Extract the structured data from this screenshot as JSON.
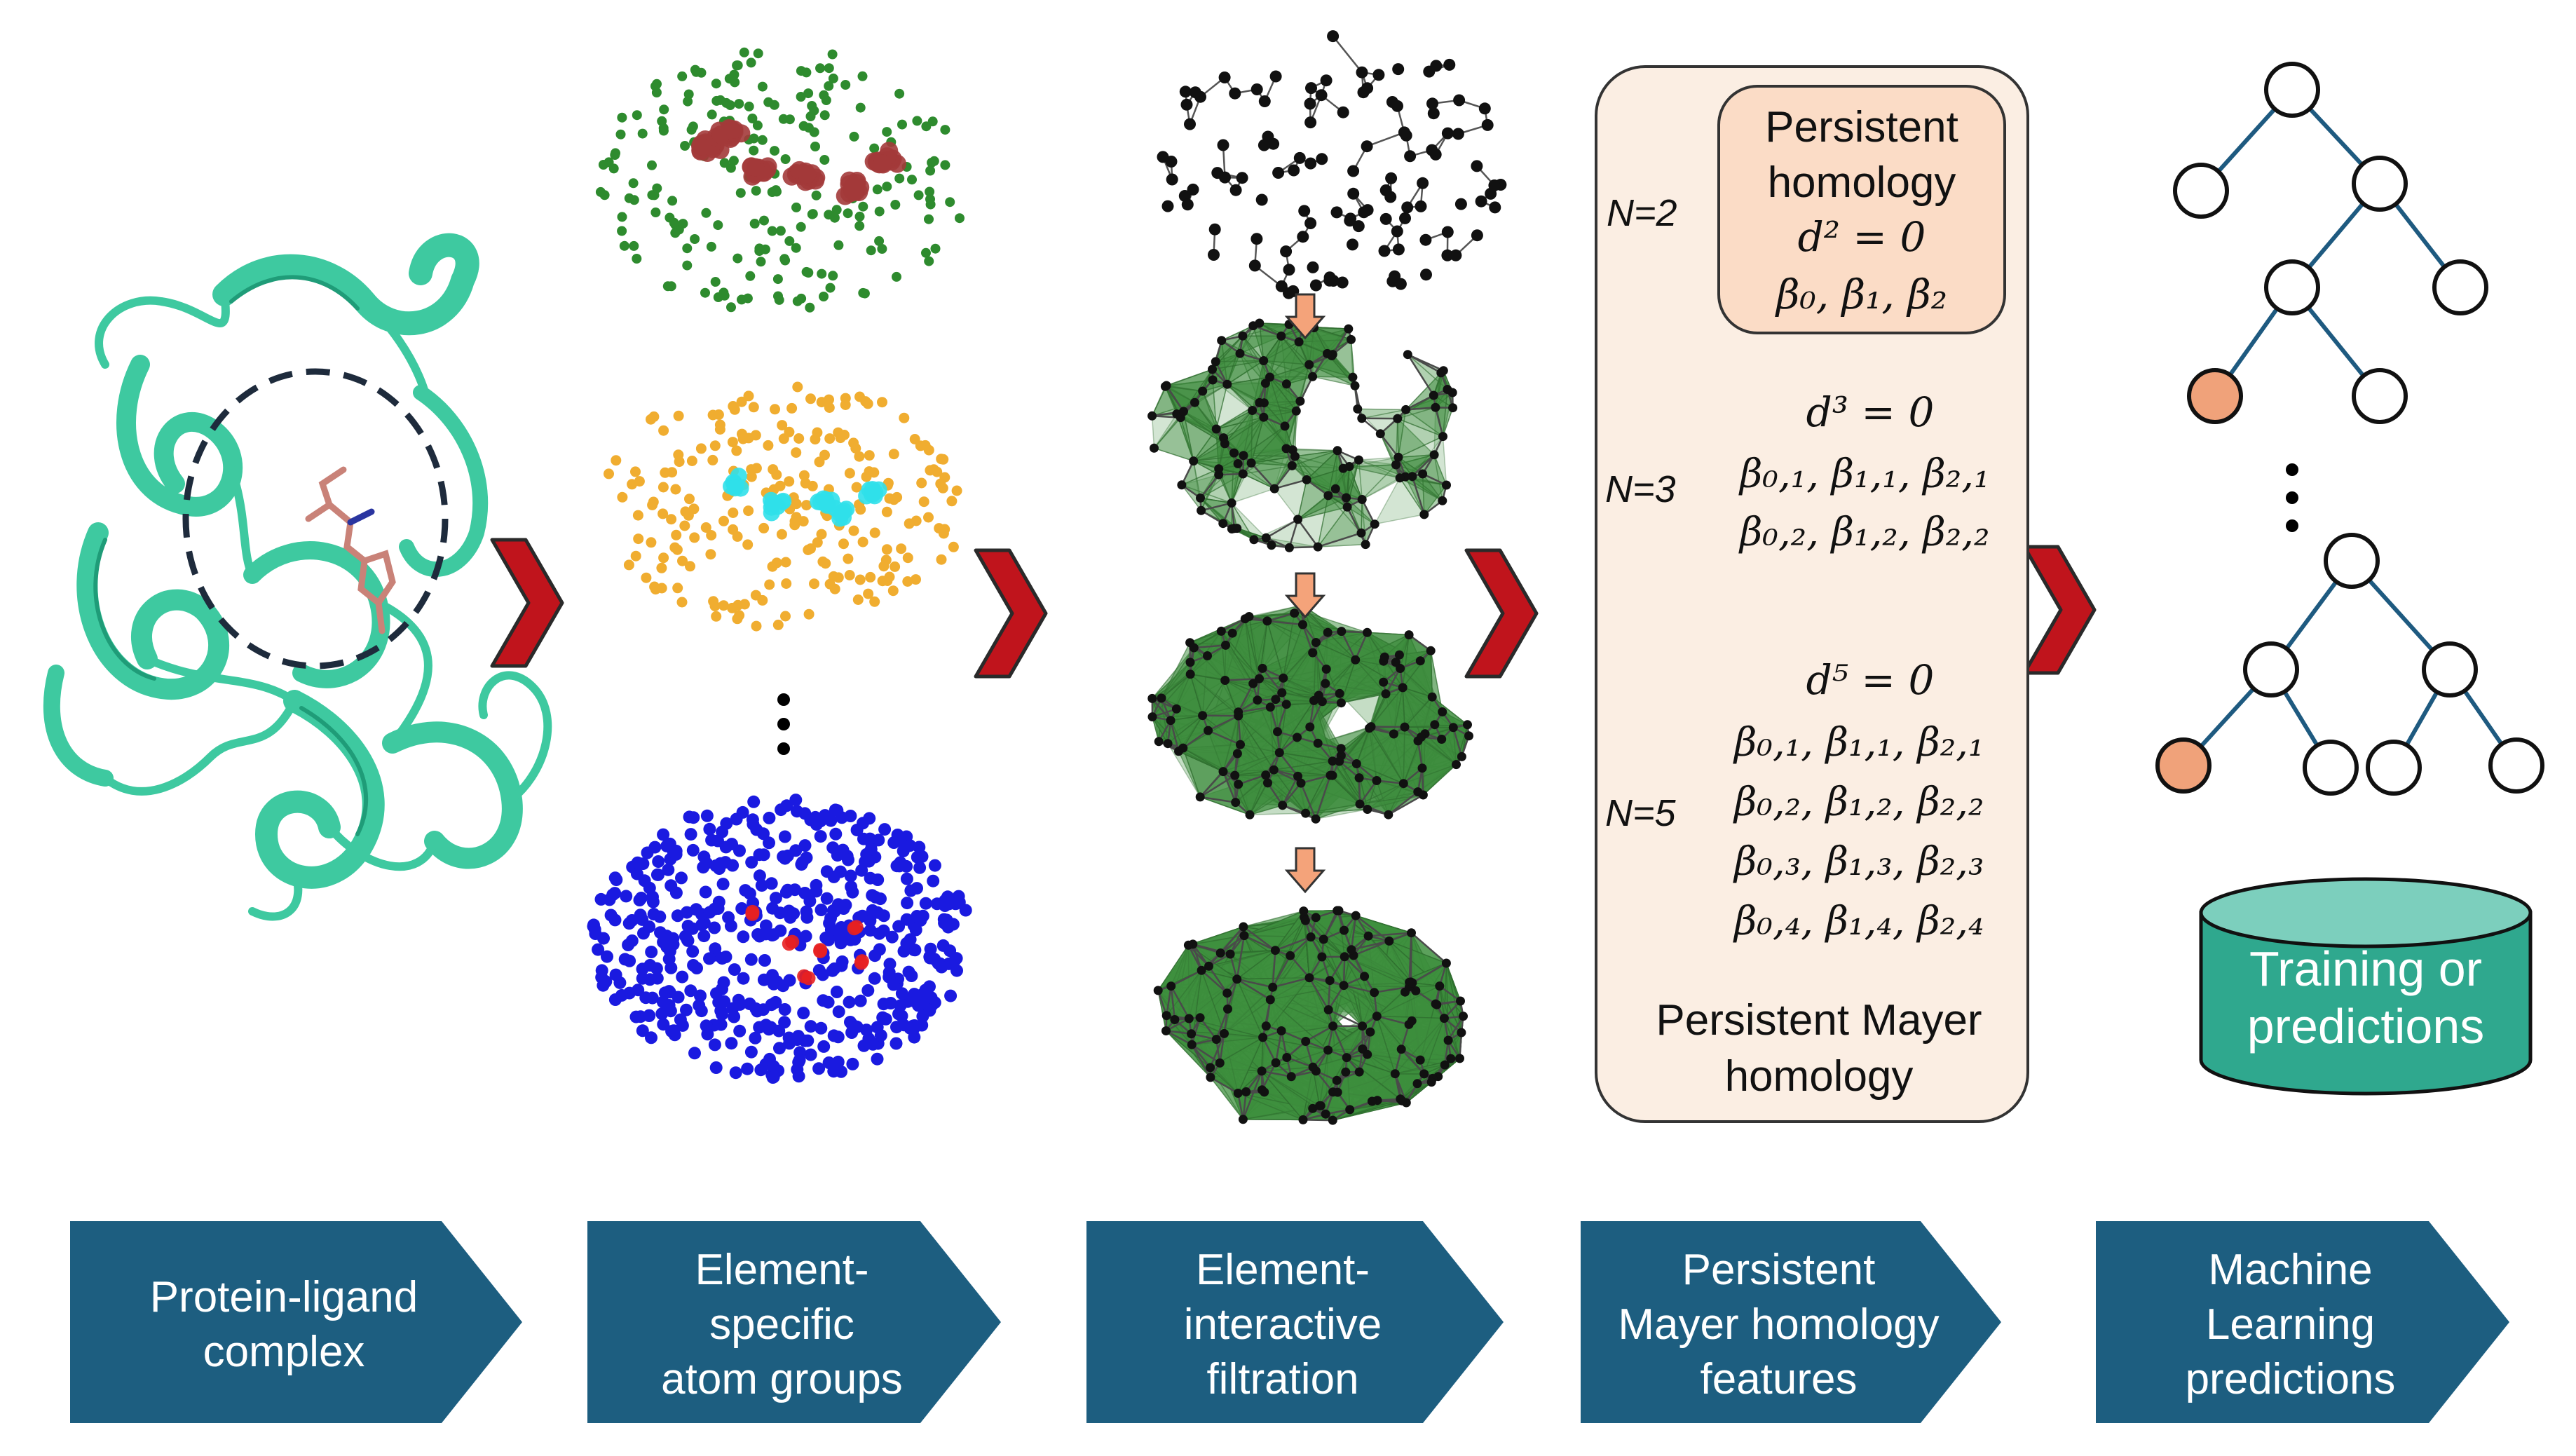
{
  "colors": {
    "protein": "#3ec9a0",
    "protein_dark": "#1f9c78",
    "pocket_outline": "#1e2b3c",
    "ligand": "#c98278",
    "chevron_red": "#c0141c",
    "chevron_dark": "#2a2a2a",
    "green_points": "#2e8b2e",
    "brown_points": "#a33a3a",
    "orange_points": "#f0ad30",
    "cyan_points": "#30e0ea",
    "blue_points": "#1a1ae0",
    "red_points": "#e82020",
    "filtration_fill": "#3f8f3f",
    "small_arrow": "#f4a37a",
    "panel_fill": "#fbeee3",
    "inner_box_fill": "#fbdcc6",
    "tree_edge": "#1e5a80",
    "leaf_highlight": "#f0a27a",
    "cylinder": "#2fa88e",
    "banner": "#1d5e80"
  },
  "homology_panel": {
    "inner_box": {
      "title_line1": "Persistent",
      "title_line2": "homology",
      "equation": "d² = 0",
      "betti": "β₀, β₁, β₂"
    },
    "rows": [
      {
        "label": "N=2"
      },
      {
        "label": "N=3",
        "equation": "d³ = 0",
        "betti": [
          "β₀,₁, β₁,₁, β₂,₁",
          "β₀,₂, β₁,₂, β₂,₂"
        ]
      },
      {
        "label": "N=5",
        "equation": "d⁵ = 0",
        "betti": [
          "β₀,₁, β₁,₁, β₂,₁",
          "β₀,₂, β₁,₂, β₂,₂",
          "β₀,₃, β₁,₃, β₂,₃",
          "β₀,₄, β₁,₄, β₂,₄"
        ]
      }
    ],
    "footer_line1": "Persistent Mayer",
    "footer_line2": "homology"
  },
  "cylinder": {
    "line1": "Training or",
    "line2": "predictions"
  },
  "banners": [
    {
      "lines": [
        "Protein-ligand",
        "complex"
      ]
    },
    {
      "lines": [
        "Element-",
        "specific",
        "atom groups"
      ]
    },
    {
      "lines": [
        "Element-",
        "interactive",
        "filtration"
      ]
    },
    {
      "lines": [
        "Persistent",
        "Mayer homology",
        "features"
      ]
    },
    {
      "lines": [
        "Machine",
        "Learning",
        "predictions"
      ]
    }
  ]
}
